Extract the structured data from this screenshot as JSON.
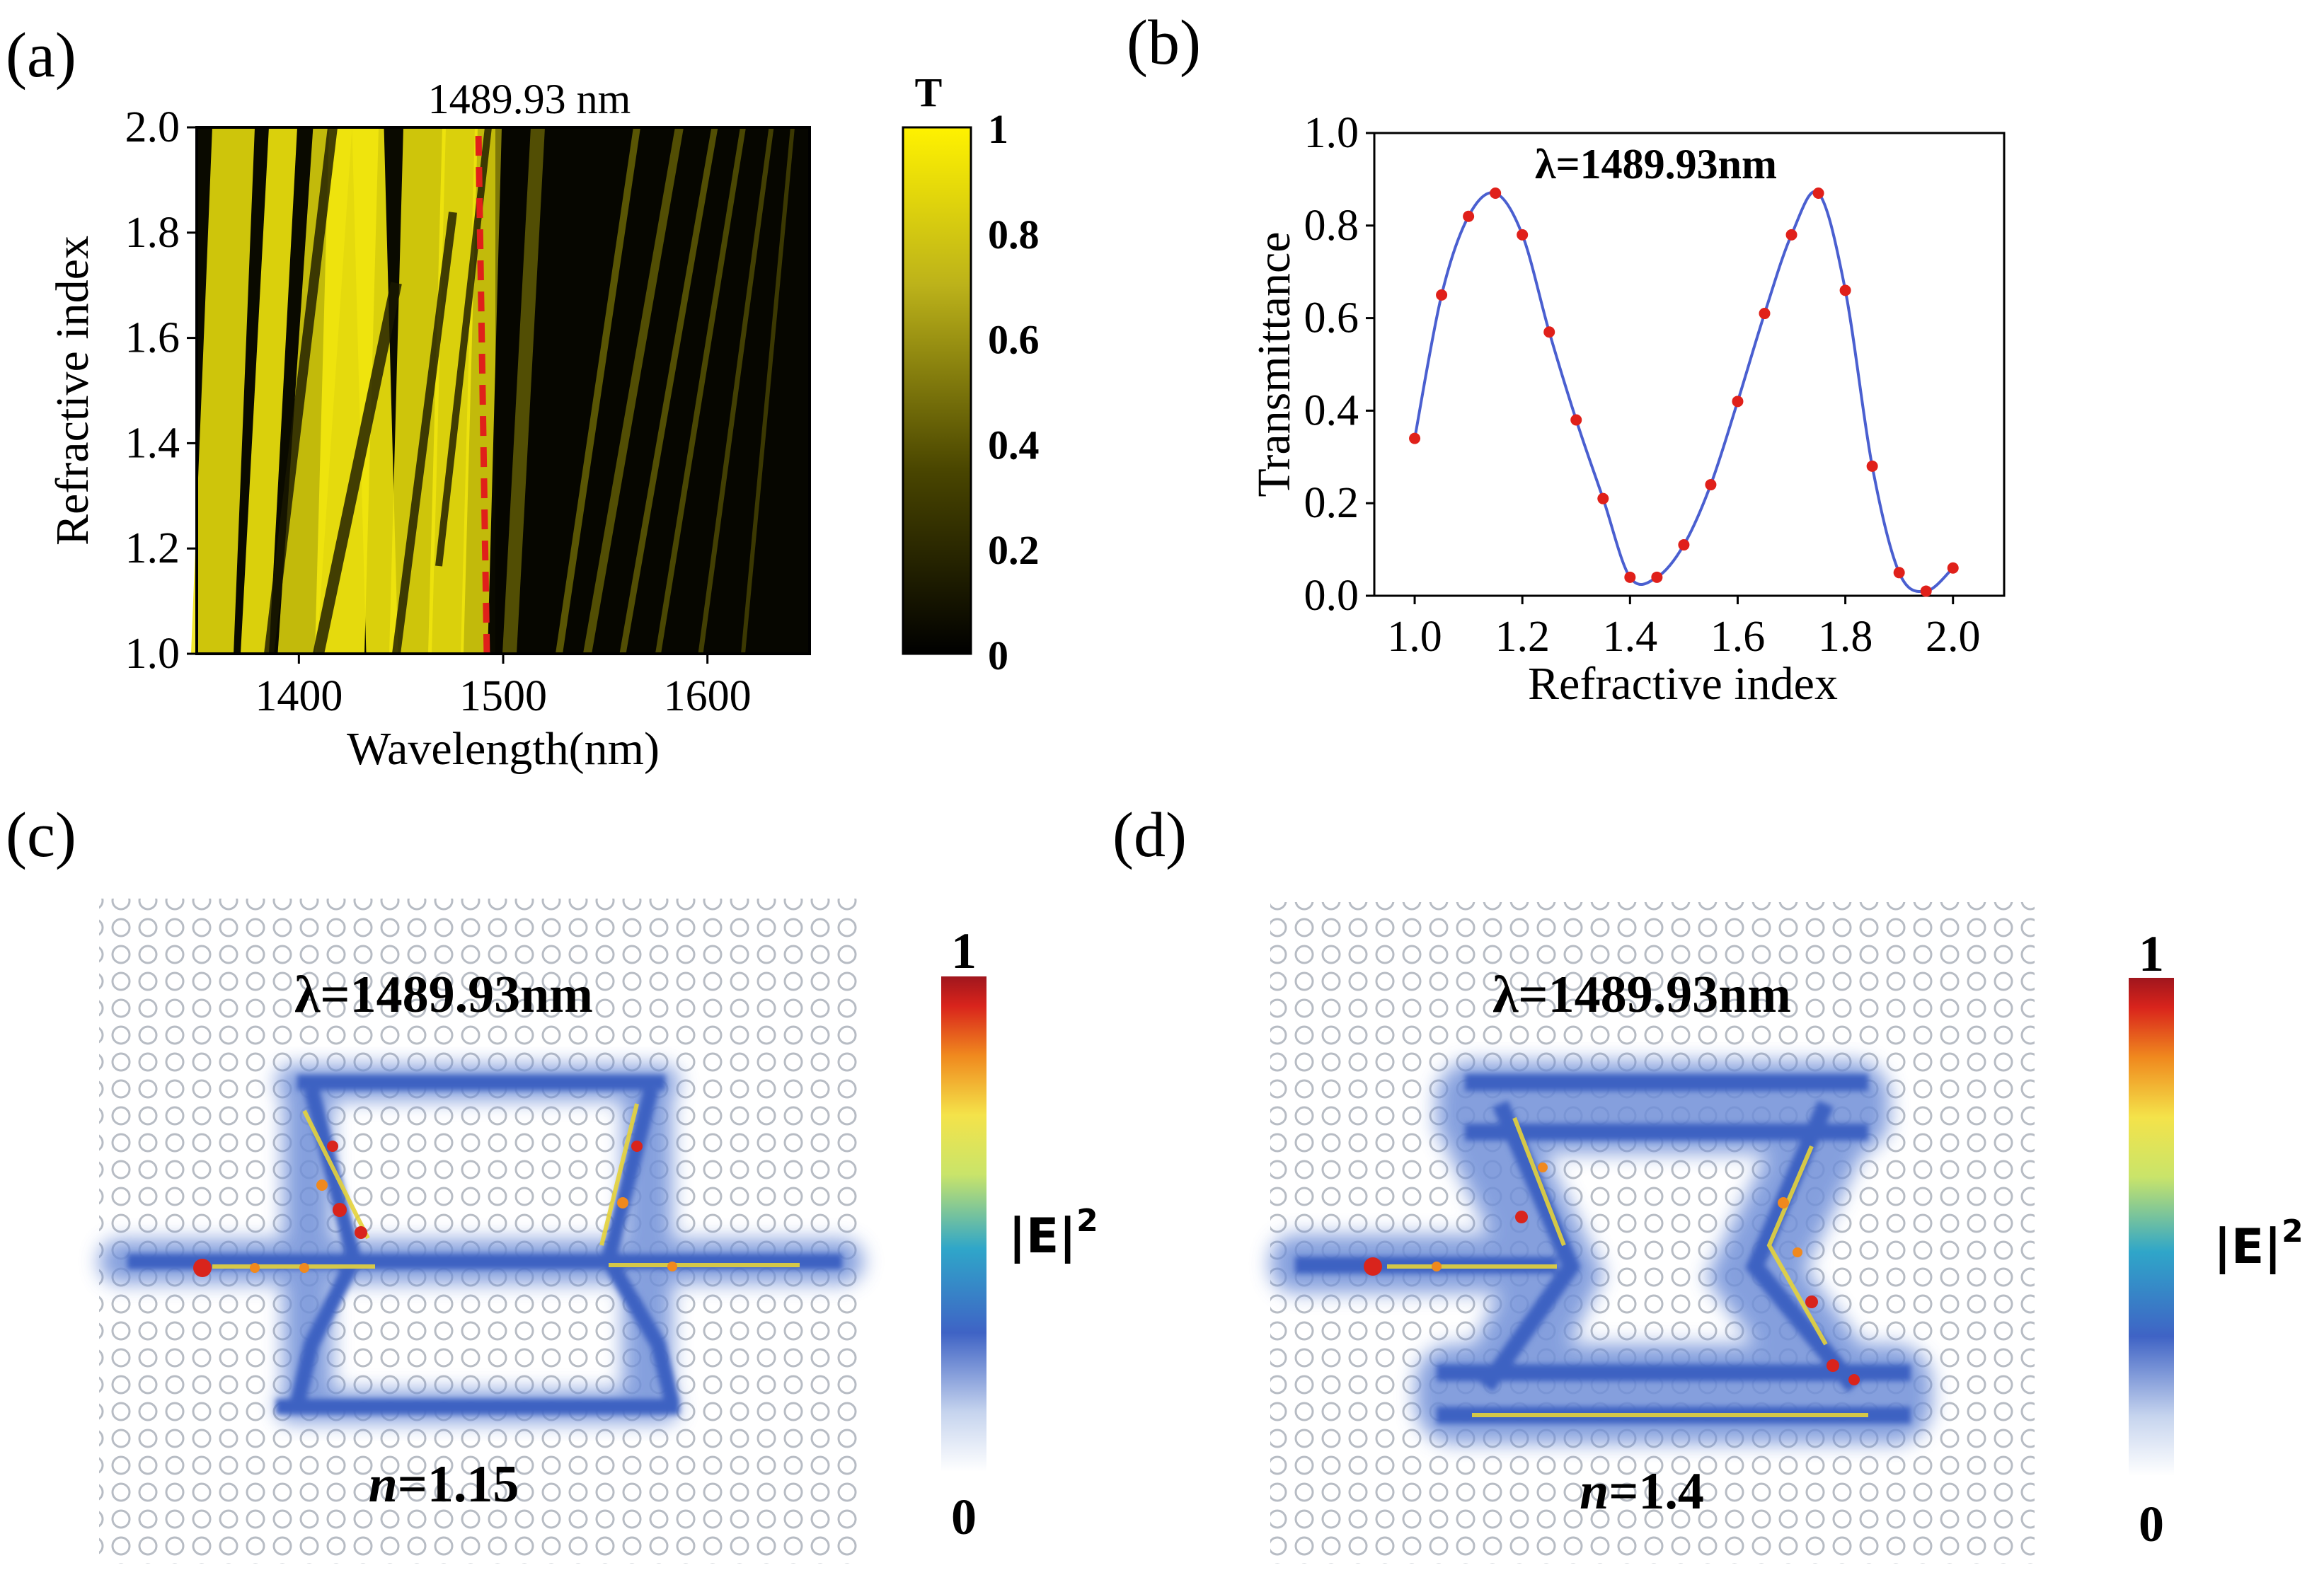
{
  "panels": {
    "a": {
      "label": "(a)",
      "top_annotation": "1489.93 nm",
      "colorbar_title": "T",
      "colorbar_ticks": [
        "1",
        "0.8",
        "0.6",
        "0.4",
        "0.2",
        "0"
      ]
    },
    "b": {
      "label": "(b)"
    },
    "c": {
      "label": "(c)",
      "wavelength_label": "λ=1489.93nm",
      "n_symbol": "n",
      "n_value": "=1.15",
      "colorbar_top": "1",
      "colorbar_bottom": "0",
      "colorbar_label": "|E|",
      "colorbar_label_sup": "2"
    },
    "d": {
      "label": "(d)",
      "wavelength_label": "λ=1489.93nm",
      "n_symbol": "n",
      "n_value": "=1.4",
      "colorbar_top": "1",
      "colorbar_bottom": "0",
      "colorbar_label": "|E|",
      "colorbar_label_sup": "2"
    }
  },
  "chart_data": [
    {
      "type": "heatmap",
      "title": "1489.93 nm",
      "xlabel": "Wavelength(nm)",
      "ylabel": "Refractive index",
      "xlim": [
        1350,
        1650
      ],
      "ylim": [
        1.0,
        2.0
      ],
      "x_ticks": [
        1400,
        1500,
        1600
      ],
      "x_tick_labels": [
        "1400",
        "1500",
        "1600"
      ],
      "y_ticks": [
        1.0,
        1.2,
        1.4,
        1.6,
        1.8,
        2.0
      ],
      "y_tick_labels": [
        "1.0",
        "1.2",
        "1.4",
        "1.6",
        "1.8",
        "2.0"
      ],
      "marker_line_x": 1489.93,
      "marker_line_color": "#e0201a",
      "colorscale": [
        "#000000",
        "#f5ea10"
      ],
      "zlim": [
        0,
        1
      ]
    },
    {
      "type": "line",
      "title": "λ=1489.93nm",
      "xlabel": "Refractive  index",
      "ylabel": "Transmittance",
      "xlim": [
        0.925,
        2.095
      ],
      "ylim": [
        0.0,
        1.0
      ],
      "x_ticks": [
        1.0,
        1.2,
        1.4,
        1.6,
        1.8,
        2.0
      ],
      "x_tick_labels": [
        "1.0",
        "1.2",
        "1.4",
        "1.6",
        "1.8",
        "2.0"
      ],
      "y_ticks": [
        0.0,
        0.2,
        0.4,
        0.6,
        0.8,
        1.0
      ],
      "y_tick_labels": [
        "0.0",
        "0.2",
        "0.4",
        "0.6",
        "0.8",
        "1.0"
      ],
      "line_color": "#4a5fd0",
      "marker_color": "#e0201a",
      "series": [
        {
          "name": "Transmittance",
          "x": [
            1.0,
            1.05,
            1.1,
            1.15,
            1.2,
            1.25,
            1.3,
            1.35,
            1.4,
            1.45,
            1.5,
            1.55,
            1.6,
            1.65,
            1.7,
            1.75,
            1.8,
            1.85,
            1.9,
            1.95,
            2.0
          ],
          "values": [
            0.34,
            0.65,
            0.82,
            0.87,
            0.78,
            0.57,
            0.38,
            0.21,
            0.04,
            0.04,
            0.11,
            0.24,
            0.42,
            0.61,
            0.78,
            0.87,
            0.66,
            0.28,
            0.05,
            0.01,
            0.06
          ]
        }
      ]
    }
  ]
}
